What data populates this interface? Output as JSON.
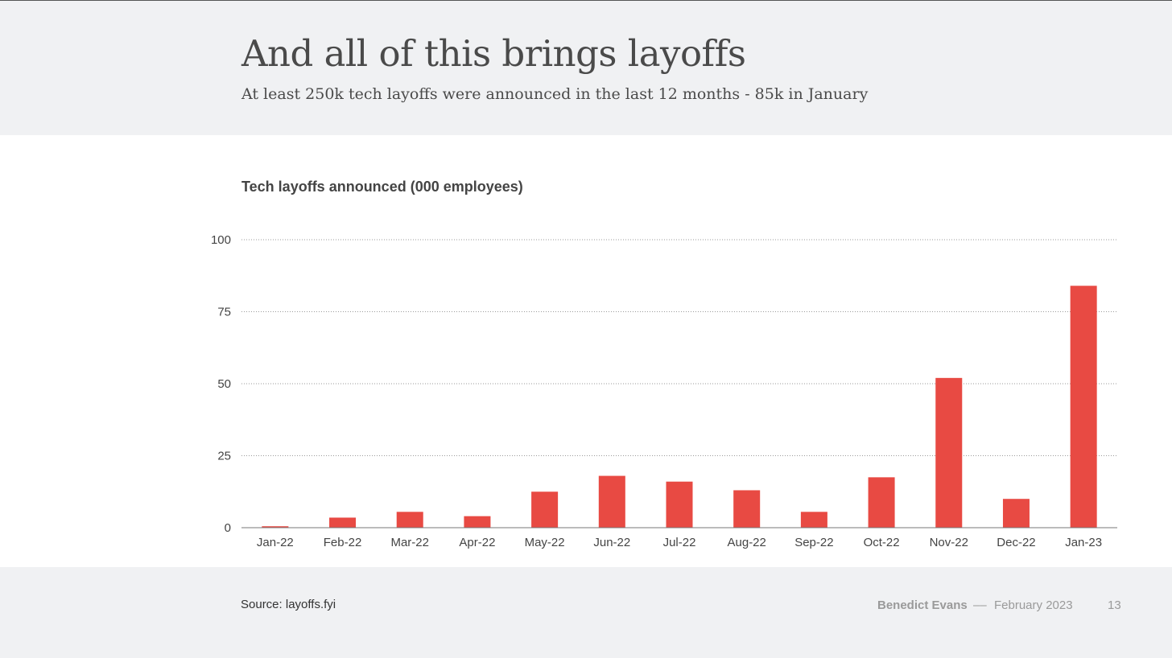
{
  "slide": {
    "title": "And all of this brings layoffs",
    "subtitle": "At least 250k tech layoffs were announced in the last 12 months -  85k in January"
  },
  "chart_data": {
    "type": "bar",
    "title": "Tech layoffs announced (000 employees)",
    "categories": [
      "Jan-22",
      "Feb-22",
      "Mar-22",
      "Apr-22",
      "May-22",
      "Jun-22",
      "Jul-22",
      "Aug-22",
      "Sep-22",
      "Oct-22",
      "Nov-22",
      "Dec-22",
      "Jan-23"
    ],
    "values": [
      0.5,
      3.5,
      5.5,
      4,
      12.5,
      18,
      16,
      13,
      5.5,
      17.5,
      52,
      10,
      84
    ],
    "ylim": [
      0,
      100
    ],
    "yticks": [
      "0",
      "25",
      "50",
      "75",
      "100"
    ],
    "grid": true,
    "bar_color": "#e84a43"
  },
  "footer": {
    "source": "Source: layoffs.fyi",
    "author": "Benedict Evans",
    "separator": "––",
    "date": "February 2023",
    "page": "13"
  }
}
